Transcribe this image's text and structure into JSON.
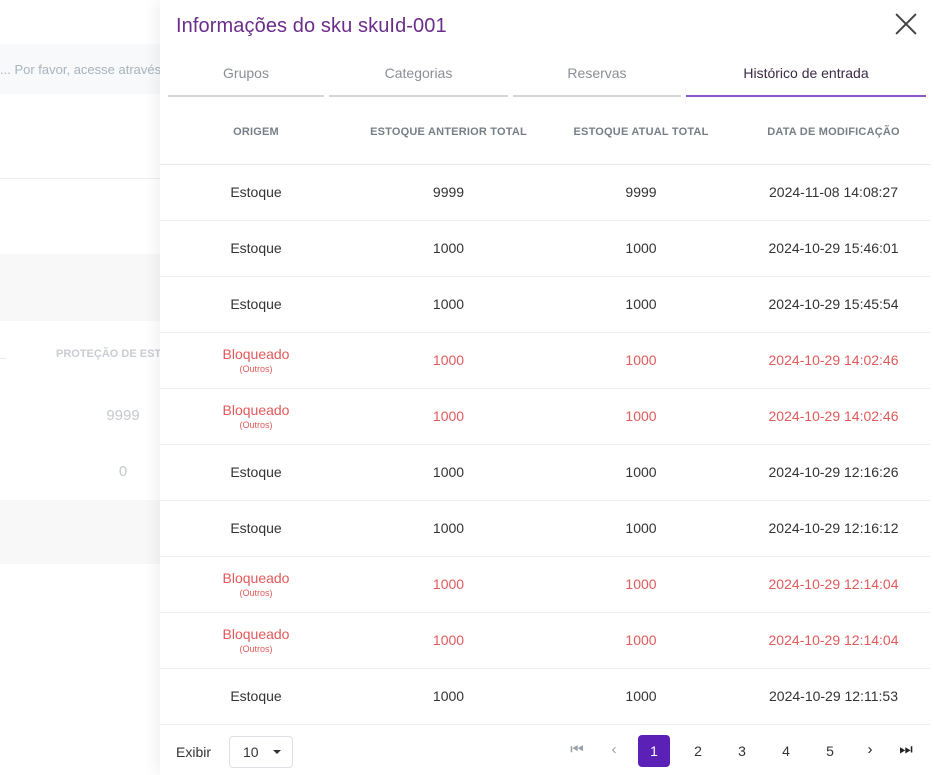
{
  "background": {
    "notice_text": "... Por favor, acesse através",
    "column_header": "PROTEÇÃO DE ESTOQUE",
    "values": [
      "9999",
      "0"
    ]
  },
  "drawer": {
    "title": "Informações do sku skuId-001",
    "tabs": [
      {
        "label": "Grupos",
        "active": false
      },
      {
        "label": "Categorias",
        "active": false
      },
      {
        "label": "Reservas",
        "active": false
      },
      {
        "label": "Histórico de entrada",
        "active": true
      }
    ],
    "table": {
      "headers": [
        "ORIGEM",
        "ESTOQUE ANTERIOR TOTAL",
        "ESTOQUE ATUAL TOTAL",
        "DATA DE MODIFICAÇÃO"
      ],
      "rows": [
        {
          "origin": "Estoque",
          "sub": "",
          "previous": "9999",
          "current": "9999",
          "date": "2024-11-08 14:08:27",
          "blocked": false
        },
        {
          "origin": "Estoque",
          "sub": "",
          "previous": "1000",
          "current": "1000",
          "date": "2024-10-29 15:46:01",
          "blocked": false
        },
        {
          "origin": "Estoque",
          "sub": "",
          "previous": "1000",
          "current": "1000",
          "date": "2024-10-29 15:45:54",
          "blocked": false
        },
        {
          "origin": "Bloqueado",
          "sub": "(Outros)",
          "previous": "1000",
          "current": "1000",
          "date": "2024-10-29 14:02:46",
          "blocked": true
        },
        {
          "origin": "Bloqueado",
          "sub": "(Outros)",
          "previous": "1000",
          "current": "1000",
          "date": "2024-10-29 14:02:46",
          "blocked": true
        },
        {
          "origin": "Estoque",
          "sub": "",
          "previous": "1000",
          "current": "1000",
          "date": "2024-10-29 12:16:26",
          "blocked": false
        },
        {
          "origin": "Estoque",
          "sub": "",
          "previous": "1000",
          "current": "1000",
          "date": "2024-10-29 12:16:12",
          "blocked": false
        },
        {
          "origin": "Bloqueado",
          "sub": "(Outros)",
          "previous": "1000",
          "current": "1000",
          "date": "2024-10-29 12:14:04",
          "blocked": true
        },
        {
          "origin": "Bloqueado",
          "sub": "(Outros)",
          "previous": "1000",
          "current": "1000",
          "date": "2024-10-29 12:14:04",
          "blocked": true
        },
        {
          "origin": "Estoque",
          "sub": "",
          "previous": "1000",
          "current": "1000",
          "date": "2024-10-29 12:11:53",
          "blocked": false
        }
      ]
    },
    "footer": {
      "show_label": "Exibir",
      "page_size": "10",
      "pages": [
        "1",
        "2",
        "3",
        "4",
        "5"
      ],
      "current_page": "1",
      "icons": [
        "first-page-icon",
        "prev-page-icon",
        "next-page-icon",
        "last-page-icon"
      ]
    }
  },
  "colors": {
    "title": "#6b2d8a",
    "active_tab": "#8b59c7",
    "blocked": "#e05a5a",
    "current_page": "#5b21b6"
  }
}
